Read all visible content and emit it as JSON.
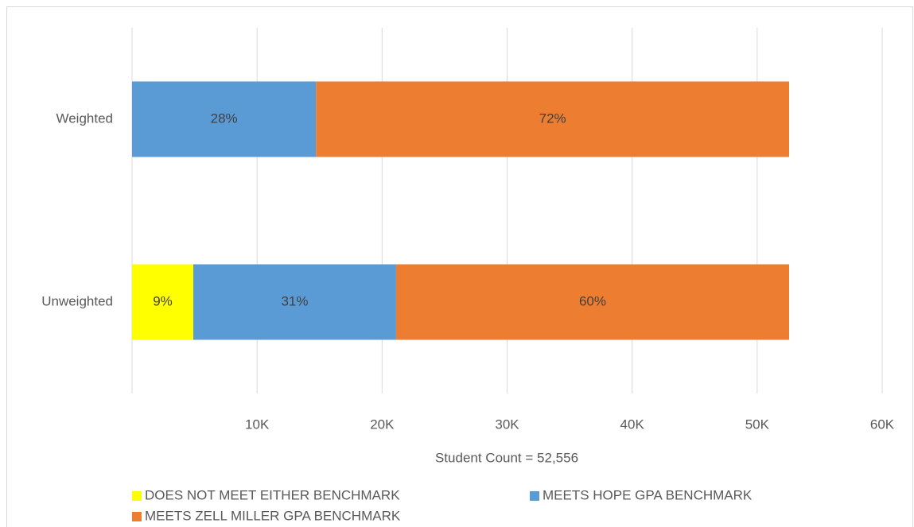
{
  "chart_data": {
    "type": "bar",
    "orientation": "horizontal",
    "stacked": true,
    "x_label": "Student Count = 52,556",
    "categories": [
      "Weighted",
      "Unweighted"
    ],
    "series": [
      {
        "name": "DOES NOT MEET EITHER BENCHMARK",
        "color": "#ffff00",
        "values": [
          null,
          4900
        ],
        "value_labels": [
          null,
          "9%"
        ]
      },
      {
        "name": "MEETS HOPE GPA BENCHMARK",
        "color": "#5b9bd5",
        "values": [
          14716,
          16220
        ],
        "value_labels": [
          "28%",
          "31%"
        ]
      },
      {
        "name": "MEETS ZELL MILLER GPA BENCHMARK",
        "color": "#ed7d31",
        "values": [
          37840,
          31436
        ],
        "value_labels": [
          "72%",
          "60%"
        ]
      }
    ],
    "xlim": [
      0,
      60000
    ],
    "xticks": [
      {
        "value": 10000,
        "label": "10K"
      },
      {
        "value": 20000,
        "label": "20K"
      },
      {
        "value": 30000,
        "label": "30K"
      },
      {
        "value": 40000,
        "label": "40K"
      },
      {
        "value": 50000,
        "label": "50K"
      },
      {
        "value": 60000,
        "label": "60K"
      }
    ],
    "grid": true,
    "legend": "bottom"
  }
}
